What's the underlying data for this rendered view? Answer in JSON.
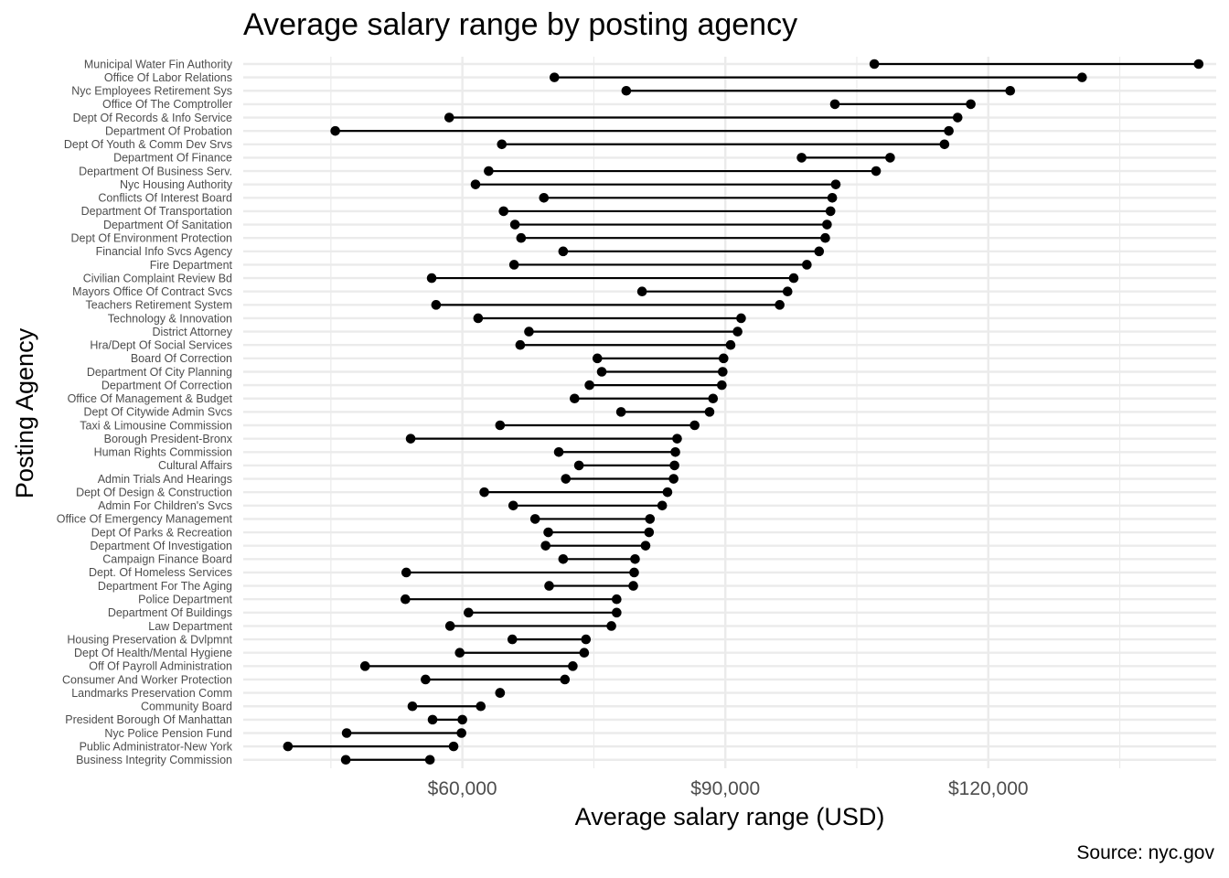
{
  "chart_data": {
    "type": "dumbbell",
    "title": "Average salary range by posting agency",
    "xlabel": "Average salary range (USD)",
    "ylabel": "Posting Agency",
    "caption": "Source: nyc.gov",
    "xlim": [
      35000,
      146000
    ],
    "x_ticks": [
      60000,
      90000,
      120000
    ],
    "x_tick_labels": [
      "$60,000",
      "$90,000",
      "$120,000"
    ],
    "grid": true,
    "colors": {
      "line": "#000000",
      "point": "#000000",
      "grid": "#ebebeb"
    },
    "series": [
      {
        "name": "min",
        "values": []
      },
      {
        "name": "max",
        "values": []
      }
    ],
    "agencies": [
      {
        "name": "Municipal Water Fin Authority",
        "min": 107000,
        "max": 144000
      },
      {
        "name": "Office Of Labor Relations",
        "min": 70500,
        "max": 130700
      },
      {
        "name": "Nyc Employees Retirement Sys",
        "min": 78700,
        "max": 122500
      },
      {
        "name": "Office Of The Comptroller",
        "min": 102500,
        "max": 118000
      },
      {
        "name": "Dept Of Records & Info Service",
        "min": 58500,
        "max": 116500
      },
      {
        "name": "Department Of Probation",
        "min": 45500,
        "max": 115500
      },
      {
        "name": "Dept Of Youth & Comm Dev Srvs",
        "min": 64500,
        "max": 115000
      },
      {
        "name": "Department Of Finance",
        "min": 98700,
        "max": 108800
      },
      {
        "name": "Department Of Business Serv.",
        "min": 63000,
        "max": 107200
      },
      {
        "name": "Nyc Housing Authority",
        "min": 61500,
        "max": 102600
      },
      {
        "name": "Conflicts Of Interest Board",
        "min": 69300,
        "max": 102200
      },
      {
        "name": "Department Of Transportation",
        "min": 64700,
        "max": 102000
      },
      {
        "name": "Department Of Sanitation",
        "min": 66000,
        "max": 101600
      },
      {
        "name": "Dept Of Environment Protection",
        "min": 66700,
        "max": 101400
      },
      {
        "name": "Financial Info Svcs Agency",
        "min": 71500,
        "max": 100700
      },
      {
        "name": "Fire Department",
        "min": 65900,
        "max": 99300
      },
      {
        "name": "Civilian Complaint Review Bd",
        "min": 56500,
        "max": 97800
      },
      {
        "name": "Mayors Office Of Contract Svcs",
        "min": 80500,
        "max": 97100
      },
      {
        "name": "Teachers Retirement System",
        "min": 57000,
        "max": 96200
      },
      {
        "name": "Technology & Innovation",
        "min": 61800,
        "max": 91800
      },
      {
        "name": "District Attorney",
        "min": 67600,
        "max": 91400
      },
      {
        "name": "Hra/Dept Of Social Services",
        "min": 66600,
        "max": 90600
      },
      {
        "name": "Board Of Correction",
        "min": 75400,
        "max": 89800
      },
      {
        "name": "Department Of City Planning",
        "min": 75900,
        "max": 89700
      },
      {
        "name": "Department Of Correction",
        "min": 74500,
        "max": 89600
      },
      {
        "name": "Office Of Management & Budget",
        "min": 72800,
        "max": 88600
      },
      {
        "name": "Dept Of Citywide Admin Svcs",
        "min": 78100,
        "max": 88200
      },
      {
        "name": "Taxi & Limousine Commission",
        "min": 64300,
        "max": 86500
      },
      {
        "name": "Borough President-Bronx",
        "min": 54100,
        "max": 84500
      },
      {
        "name": "Human Rights Commission",
        "min": 71000,
        "max": 84300
      },
      {
        "name": "Cultural Affairs",
        "min": 73300,
        "max": 84200
      },
      {
        "name": "Admin Trials And Hearings",
        "min": 71800,
        "max": 84100
      },
      {
        "name": "Dept Of Design & Construction",
        "min": 62500,
        "max": 83400
      },
      {
        "name": "Admin For Children's Svcs",
        "min": 65800,
        "max": 82800
      },
      {
        "name": "Office Of Emergency Management",
        "min": 68300,
        "max": 81400
      },
      {
        "name": "Dept Of Parks & Recreation",
        "min": 69800,
        "max": 81300
      },
      {
        "name": "Department Of Investigation",
        "min": 69500,
        "max": 80900
      },
      {
        "name": "Campaign Finance Board",
        "min": 71500,
        "max": 79700
      },
      {
        "name": "Dept. Of Homeless Services",
        "min": 53600,
        "max": 79600
      },
      {
        "name": "Department For The Aging",
        "min": 69900,
        "max": 79500
      },
      {
        "name": "Police Department",
        "min": 53500,
        "max": 77600
      },
      {
        "name": "Department Of Buildings",
        "min": 60700,
        "max": 77600
      },
      {
        "name": "Law Department",
        "min": 58600,
        "max": 77000
      },
      {
        "name": "Housing Preservation & Dvlpmnt",
        "min": 65700,
        "max": 74100
      },
      {
        "name": "Dept Of Health/Mental Hygiene",
        "min": 59700,
        "max": 73900
      },
      {
        "name": "Off Of Payroll Administration",
        "min": 48900,
        "max": 72600
      },
      {
        "name": "Consumer And Worker Protection",
        "min": 55800,
        "max": 71700
      },
      {
        "name": "Landmarks Preservation Comm",
        "min": 64300,
        "max": 64300
      },
      {
        "name": "Community Board",
        "min": 54300,
        "max": 62100
      },
      {
        "name": "President Borough Of Manhattan",
        "min": 56600,
        "max": 60000
      },
      {
        "name": "Nyc Police Pension Fund",
        "min": 46800,
        "max": 59900
      },
      {
        "name": "Public Administrator-New York",
        "min": 40100,
        "max": 59000
      },
      {
        "name": "Business Integrity Commission",
        "min": 46700,
        "max": 56300
      }
    ]
  }
}
